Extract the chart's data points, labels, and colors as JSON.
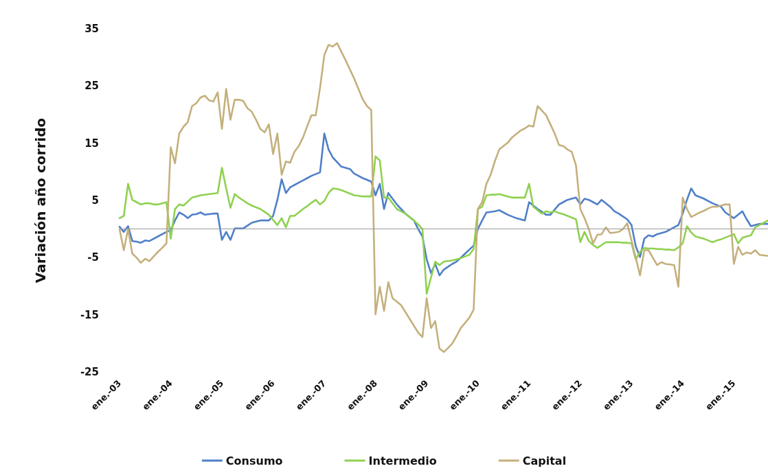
{
  "chart_data": {
    "type": "line",
    "ylabel": "Variación año corrido",
    "categories": [
      "ene.-03",
      null,
      null,
      null,
      null,
      null,
      null,
      null,
      null,
      null,
      null,
      null,
      "ene.-04",
      null,
      null,
      null,
      null,
      null,
      null,
      null,
      null,
      null,
      null,
      null,
      "ene.-05",
      null,
      null,
      null,
      null,
      null,
      null,
      null,
      null,
      null,
      null,
      null,
      "ene.-06",
      null,
      null,
      null,
      null,
      null,
      null,
      null,
      null,
      null,
      null,
      null,
      "ene.-07",
      null,
      null,
      null,
      null,
      null,
      null,
      null,
      null,
      null,
      null,
      null,
      "ene.-08",
      null,
      null,
      null,
      null,
      null,
      null,
      null,
      null,
      null,
      null,
      null,
      "ene.-09",
      null,
      null,
      null,
      null,
      null,
      null,
      null,
      null,
      null,
      null,
      null,
      "ene.-10",
      null,
      null,
      null,
      null,
      null,
      null,
      null,
      null,
      null,
      null,
      null,
      "ene.-11",
      null,
      null,
      null,
      null,
      null,
      null,
      null,
      null,
      null,
      null,
      null,
      "ene.-12",
      null,
      null,
      null,
      null,
      null,
      null,
      null,
      null,
      null,
      null,
      null,
      "ene.-13",
      null,
      null,
      null,
      null,
      null,
      null,
      null,
      null,
      null,
      null,
      null,
      "ene.-14",
      null,
      null,
      null,
      null,
      null,
      null,
      null,
      null,
      null,
      null,
      null,
      "ene.-15",
      null,
      null,
      null,
      null,
      null,
      null,
      null,
      null
    ],
    "series": [
      {
        "name": "Consumo",
        "color": "#4f7fc8",
        "values": [
          0.4,
          -0.5,
          0.5,
          -2.1,
          -2.2,
          -2.4,
          -2,
          -2.1,
          -1.7,
          -1.3,
          -0.9,
          -0.5,
          -0.2,
          1.5,
          2.9,
          2.5,
          1.9,
          2.5,
          2.6,
          2.9,
          2.5,
          2.6,
          2.7,
          2.7,
          -1.9,
          -0.5,
          -1.9,
          0.1,
          0.1,
          0.1,
          0.6,
          1.1,
          1.3,
          1.5,
          1.5,
          1.5,
          2.3,
          5.1,
          8.7,
          6.3,
          7.3,
          7.7,
          8.1,
          8.5,
          8.9,
          9.3,
          9.6,
          9.9,
          16.7,
          13.9,
          12.5,
          11.7,
          10.9,
          10.7,
          10.5,
          9.7,
          9.3,
          8.9,
          8.6,
          8.3,
          5.9,
          7.9,
          3.5,
          6.3,
          5.3,
          4.3,
          3.5,
          2.7,
          2.1,
          1.5,
          0,
          -1.3,
          -5.3,
          -7.7,
          -6.1,
          -8.1,
          -7.1,
          -6.6,
          -6.1,
          -5.7,
          -5,
          -4.3,
          -3.6,
          -2.9,
          0,
          1.5,
          2.9,
          3,
          3.1,
          3.3,
          2.9,
          2.5,
          2.2,
          1.9,
          1.7,
          1.5,
          4.7,
          4.1,
          3.5,
          3,
          2.5,
          2.5,
          3.4,
          4.3,
          4.7,
          5.1,
          5.3,
          5.5,
          4.3,
          5.3,
          5.1,
          4.7,
          4.3,
          5.1,
          4.5,
          3.9,
          3.1,
          2.7,
          2.2,
          1.7,
          0.7,
          -3,
          -4.9,
          -1.7,
          -1.1,
          -1.3,
          -0.9,
          -0.7,
          -0.5,
          -0.1,
          0.3,
          0.7,
          2.7,
          5.1,
          7.1,
          5.9,
          5.6,
          5.3,
          4.9,
          4.5,
          4.2,
          3.9,
          2.9,
          2.4,
          1.9,
          2.5,
          3.1,
          1.7,
          0.5,
          0.7,
          0.9,
          0.9,
          0.9
        ]
      },
      {
        "name": "Intermedio",
        "color": "#8fd14f",
        "values": [
          1.9,
          2.3,
          7.9,
          5.1,
          4.7,
          4.3,
          4.5,
          4.5,
          4.3,
          4.3,
          4.5,
          4.7,
          -1.7,
          3.5,
          4.3,
          4.1,
          4.8,
          5.5,
          5.7,
          5.9,
          6,
          6.1,
          6.2,
          6.3,
          10.7,
          7.1,
          3.7,
          6.1,
          5.5,
          5,
          4.5,
          4.1,
          3.8,
          3.5,
          3,
          2.5,
          1.6,
          0.7,
          1.9,
          0.3,
          2.3,
          2.3,
          2.9,
          3.5,
          4,
          4.6,
          5.1,
          4.3,
          4.9,
          6.3,
          7.1,
          7,
          6.8,
          6.5,
          6.2,
          5.9,
          5.8,
          5.7,
          5.7,
          5.7,
          12.7,
          12,
          5.5,
          5.5,
          4.5,
          3.5,
          3.1,
          2.7,
          2.1,
          1.5,
          0.8,
          0,
          -11.3,
          -8.5,
          -5.7,
          -6.3,
          -5.7,
          -5.6,
          -5.5,
          -5.3,
          -5.1,
          -4.8,
          -4.5,
          -3.5,
          3.5,
          3.9,
          5.9,
          6,
          6,
          6.1,
          5.9,
          5.7,
          5.5,
          5.5,
          5.5,
          5.5,
          7.9,
          3.9,
          3.3,
          2.7,
          3.1,
          2.9,
          3.1,
          2.8,
          2.6,
          2.3,
          2,
          1.7,
          -2.3,
          -0.5,
          -2.1,
          -2.8,
          -3.3,
          -2.8,
          -2.3,
          -2.3,
          -2.3,
          -2.3,
          -2.4,
          -2.4,
          -2.5,
          -5.3,
          -4,
          -3.3,
          -3.4,
          -3.4,
          -3.5,
          -3.5,
          -3.6,
          -3.6,
          -3.7,
          -3.2,
          -2.5,
          0.5,
          -0.6,
          -1.3,
          -1.5,
          -1.7,
          -2,
          -2.3,
          -2,
          -1.8,
          -1.5,
          -1.2,
          -0.9,
          -2.5,
          -1.5,
          -1.3,
          -1.1,
          0.3,
          0.7,
          1.1,
          1.5
        ]
      },
      {
        "name": "Capital",
        "color": "#c4b07c",
        "values": [
          0,
          -3.7,
          0,
          -4.3,
          -5,
          -5.9,
          -5.2,
          -5.6,
          -4.8,
          -4,
          -3.3,
          -2.5,
          14.3,
          11.5,
          16.7,
          17.9,
          18.7,
          21.5,
          22,
          23,
          23.3,
          22.5,
          22.3,
          23.9,
          17.5,
          24.5,
          19.1,
          22.6,
          22.6,
          22.4,
          21.1,
          20.5,
          19.1,
          17.5,
          16.9,
          18.3,
          13.1,
          16.7,
          9.5,
          11.8,
          11.6,
          13.5,
          14.5,
          16,
          18,
          19.9,
          19.9,
          24.7,
          30.4,
          32.2,
          31.9,
          32.5,
          31,
          29.5,
          27.9,
          26.3,
          24.5,
          22.7,
          21.5,
          20.8,
          -14.9,
          -10.1,
          -14.3,
          -9.3,
          -12.1,
          -12.7,
          -13.3,
          -14.5,
          -15.7,
          -16.9,
          -18.1,
          -18.9,
          -12.1,
          -17.3,
          -16.1,
          -20.9,
          -21.5,
          -20.8,
          -20,
          -18.7,
          -17.3,
          -16.4,
          -15.5,
          -14.1,
          3.5,
          4.7,
          7.9,
          9.5,
          11.9,
          13.9,
          14.5,
          15.1,
          16,
          16.6,
          17.2,
          17.6,
          18.1,
          17.9,
          21.5,
          20.7,
          19.9,
          18.3,
          16.7,
          14.7,
          14.5,
          13.9,
          13.5,
          11.1,
          3.5,
          1.9,
          0,
          -2.5,
          -1,
          -0.9,
          0.3,
          -0.7,
          -0.6,
          -0.5,
          0,
          1,
          -2,
          -5,
          -8.1,
          -3.7,
          -3.7,
          -5,
          -6.3,
          -5.8,
          -6.1,
          -6.2,
          -6.3,
          -10.1,
          5.5,
          3.5,
          2.1,
          2.5,
          2.9,
          3.2,
          3.6,
          3.9,
          3.9,
          4.1,
          4.3,
          4.3,
          -6.1,
          -3.1,
          -4.5,
          -4.1,
          -4.3,
          -3.7,
          -4.5,
          -4.6,
          -4.7
        ]
      }
    ],
    "ylim": [
      -25,
      35
    ],
    "yticks": [
      -25,
      -15,
      -5,
      5,
      15,
      25,
      35
    ],
    "ref_lines": [
      {
        "axis": "y",
        "value": 0,
        "color": "#9a9a9a"
      }
    ],
    "grid": false,
    "legend": "bottom",
    "marker": "none",
    "line_style": "solid"
  }
}
